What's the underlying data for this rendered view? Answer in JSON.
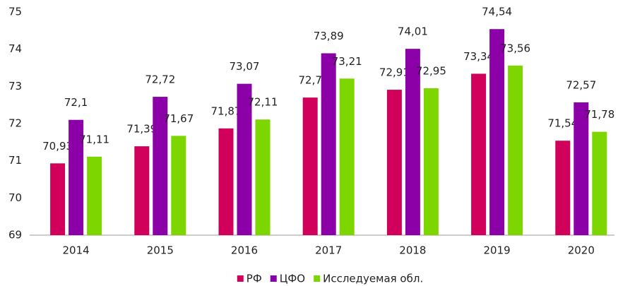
{
  "chart_data": {
    "type": "bar",
    "categories": [
      "2014",
      "2015",
      "2016",
      "2017",
      "2018",
      "2019",
      "2020"
    ],
    "series": [
      {
        "name": "РФ",
        "color": "#d1005a",
        "values": [
          70.93,
          71.39,
          71.87,
          72.7,
          72.91,
          73.34,
          71.54
        ],
        "value_labels": [
          "70,93",
          "71,39",
          "71,87",
          "72,7",
          "72,91",
          "73,34",
          "71,54"
        ]
      },
      {
        "name": "ЦФО",
        "color": "#8c00a8",
        "values": [
          72.1,
          72.72,
          73.07,
          73.89,
          74.01,
          74.54,
          72.57
        ],
        "value_labels": [
          "72,1",
          "72,72",
          "73,07",
          "73,89",
          "74,01",
          "74,54",
          "72,57"
        ]
      },
      {
        "name": "Исследуемая обл.",
        "color": "#7ed600",
        "values": [
          71.11,
          71.67,
          72.11,
          73.21,
          72.95,
          73.56,
          71.78
        ],
        "value_labels": [
          "71,11",
          "71,67",
          "72,11",
          "73,21",
          "72,95",
          "73,56",
          "71,78"
        ]
      }
    ],
    "ylim": [
      69,
      75
    ],
    "yticks": [
      69,
      70,
      71,
      72,
      73,
      74,
      75
    ],
    "grid": false,
    "legend": "bottom"
  }
}
